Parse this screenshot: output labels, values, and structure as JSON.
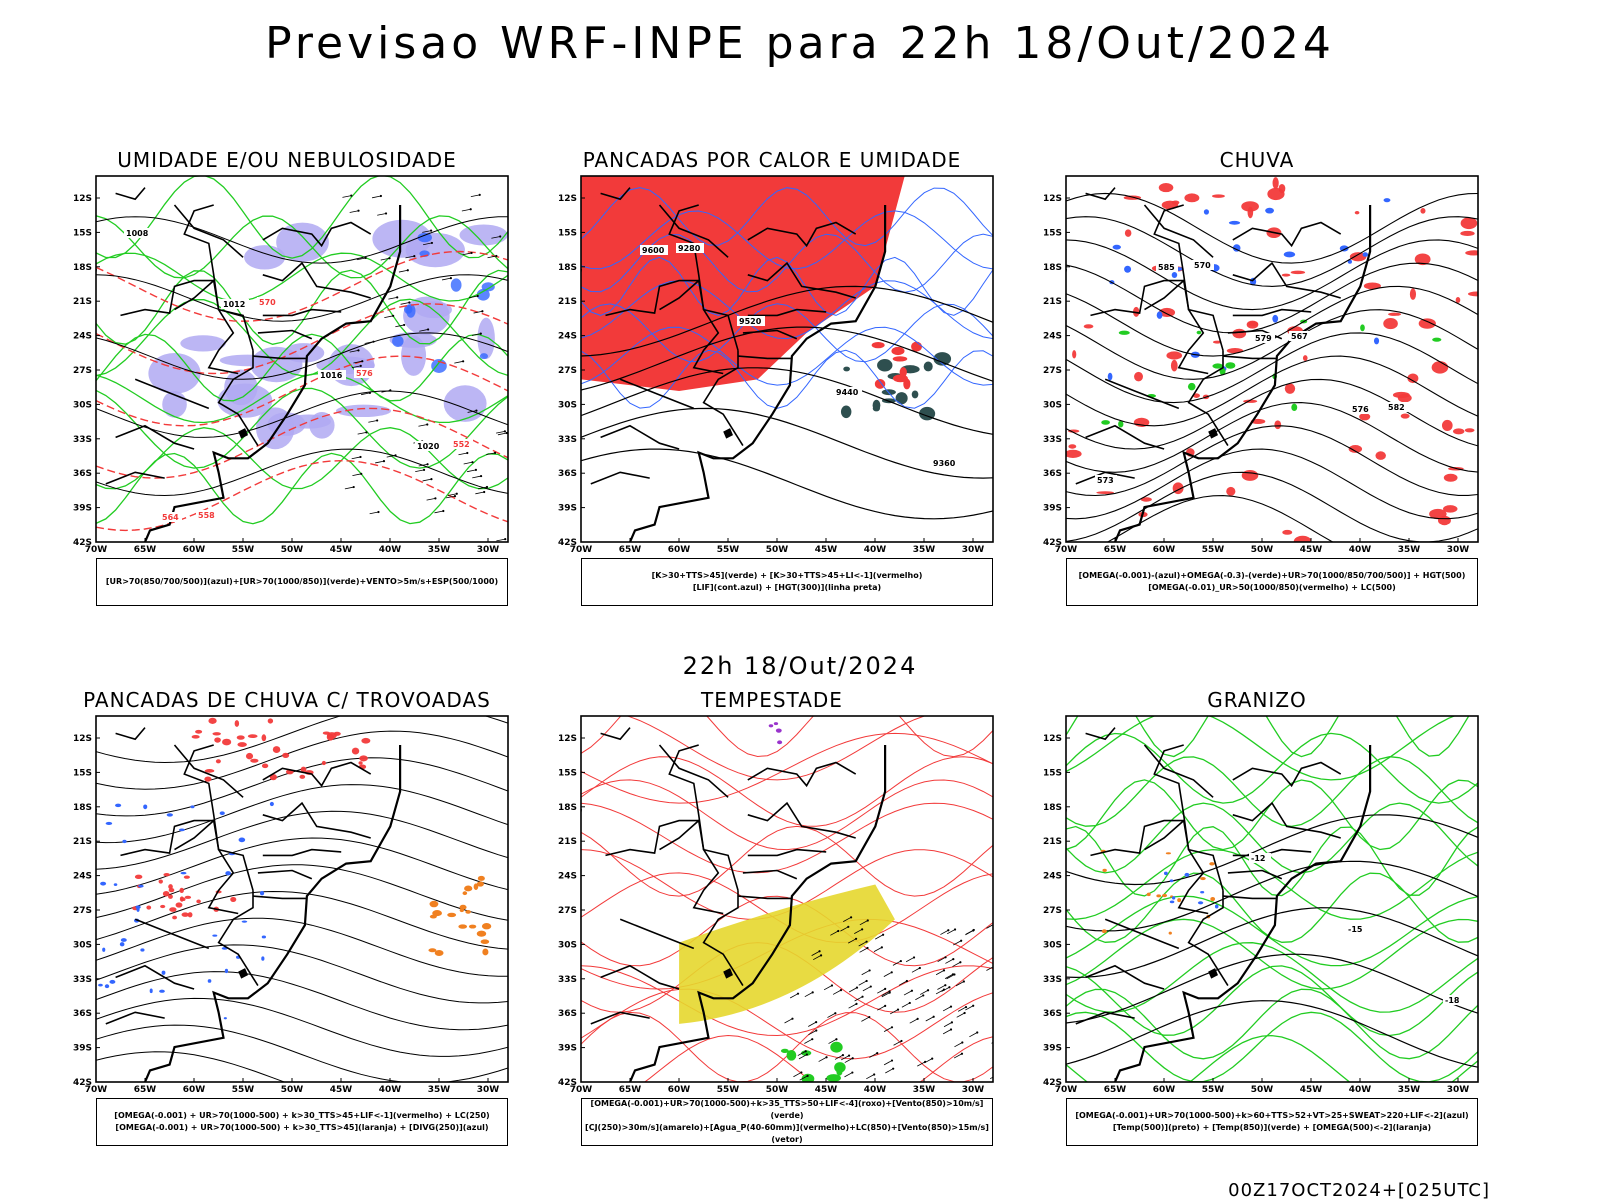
{
  "main_title": "Previsao WRF-INPE  para 22h 18/Out/2024",
  "mid_time": "22h 18/Out/2024",
  "footer_stamp": "00Z17OCT2024+[025UTC]",
  "axes": {
    "lat_labels": [
      "12S",
      "15S",
      "18S",
      "21S",
      "24S",
      "27S",
      "30S",
      "33S",
      "36S",
      "39S",
      "42S"
    ],
    "lon_labels": [
      "70W",
      "65W",
      "60W",
      "55W",
      "50W",
      "45W",
      "40W",
      "35W",
      "30W"
    ]
  },
  "colors": {
    "red": "#f23a3a",
    "blue": "#3366ff",
    "green": "#22cc22",
    "light_purple": "#b0a9f2",
    "dark_teal": "#2e4f4f",
    "yellow": "#e6d72e",
    "orange": "#f08020",
    "purple": "#9933cc"
  },
  "panels": [
    {
      "title": "UMIDADE E/OU NEBULOSIDADE",
      "legend": [
        "[UR>70(850/700/500)](azul)+[UR>70(1000/850)](verde)+VENTO>5m/s+ESP(500/1000)"
      ],
      "contour_labels": [
        "1008",
        "1012",
        "1016",
        "1020",
        "564",
        "570",
        "576",
        "552",
        "558"
      ]
    },
    {
      "title": "PANCADAS POR CALOR E UMIDADE",
      "legend": [
        "[K>30+TTS>45](verde)  +  [K>30+TTS>45+LI<-1](vermelho)",
        "[LIF](cont.azul)  +  [HGT(300)](linha preta)"
      ],
      "contour_labels": [
        "9600",
        "9520",
        "9440",
        "9360",
        "9280"
      ]
    },
    {
      "title": "CHUVA",
      "legend": [
        "[OMEGA(-0.001)-(azul)+OMEGA(-0.3)-(verde)+UR>70(1000/850/700/500)]  +  HGT(500)",
        "[OMEGA(-0.01)_UR>50(1000/850)(vermelho)  +  LC(500)"
      ],
      "contour_labels": [
        "585",
        "579",
        "576",
        "573",
        "570",
        "567",
        "582"
      ]
    },
    {
      "title": "PANCADAS DE CHUVA C/ TROVOADAS",
      "legend": [
        "[OMEGA(-0.001)  +  UR>70(1000-500)  +  k>30_TTS>45+LIF<-1](vermelho)  +  LC(250)",
        "[OMEGA(-0.001)  +  UR>70(1000-500)  +  k>30_TTS>45](laranja)  +  [DIVG(250)](azul)"
      ],
      "contour_labels": []
    },
    {
      "title": "TEMPESTADE",
      "legend": [
        "[OMEGA(-0.001)+UR>70(1000-500)+k>35_TTS>50+LIF<-4](roxo)+[Vento(850)>10m/s](verde)",
        "[CJ(250)>30m/s](amarelo)+[Agua_P(40-60mm)](vermelho)+LC(850)+[Vento(850)>15m/s](vetor)"
      ],
      "contour_labels": []
    },
    {
      "title": "GRANIZO",
      "legend": [
        "[OMEGA(-0.001)+UR>70(1000-500)+k>60+TTS>52+VT>25+SWEAT>220+LIF<-2](azul)",
        "[Temp(500)](preto)  +  [Temp(850)](verde)  +  [OMEGA(500)<-2](laranja)"
      ],
      "contour_labels": [
        "-12",
        "-15",
        "-18"
      ]
    }
  ]
}
